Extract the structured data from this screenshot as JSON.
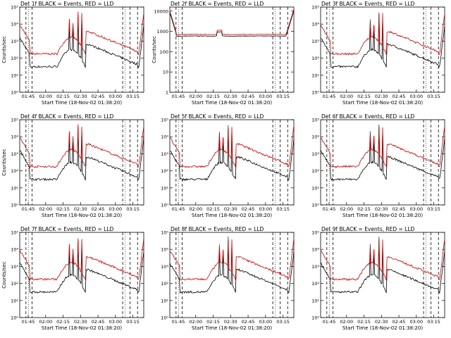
{
  "page": {
    "title_suffix": " BLACK = Events, RED = LLD"
  },
  "colors": {
    "events": "#000000",
    "lld": "#e00000",
    "axes": "#000000"
  },
  "x_label": "Start Time (18-Nov-02 01:38:20)",
  "y_label": "Counts/sec",
  "x_ticks": [
    "01:45",
    "02:00",
    "02:15",
    "02:30",
    "02:45",
    "03:00",
    "03:15"
  ],
  "log_y_ticks": [
    "10⁰",
    "10¹",
    "10²",
    "10³",
    "10⁴",
    "10⁵"
  ],
  "linear_y_ticks": [
    "1",
    "10",
    "100",
    "1000",
    "10000"
  ],
  "chart_data": [
    {
      "type": "line",
      "title": "Det 1f",
      "ylim": [
        1,
        100000
      ],
      "yscale": "log",
      "series": [
        {
          "name": "BLACK = Events"
        },
        {
          "name": "RED = LLD"
        }
      ]
    },
    {
      "type": "line",
      "title": "Det 2f",
      "ylim": [
        1,
        15000
      ],
      "yscale": "log",
      "series": [
        {
          "name": "BLACK = Events"
        },
        {
          "name": "RED = LLD"
        }
      ]
    },
    {
      "type": "line",
      "title": "Det 3f",
      "ylim": [
        1,
        100000
      ],
      "yscale": "log",
      "series": [
        {
          "name": "BLACK = Events"
        },
        {
          "name": "RED = LLD"
        }
      ]
    },
    {
      "type": "line",
      "title": "Det 4f",
      "ylim": [
        1,
        100000
      ],
      "yscale": "log",
      "series": [
        {
          "name": "BLACK = Events"
        },
        {
          "name": "RED = LLD"
        }
      ]
    },
    {
      "type": "line",
      "title": "Det 5f",
      "ylim": [
        1,
        100000
      ],
      "yscale": "log",
      "series": [
        {
          "name": "BLACK = Events"
        },
        {
          "name": "RED = LLD"
        }
      ]
    },
    {
      "type": "line",
      "title": "Det 6f",
      "ylim": [
        1,
        100000
      ],
      "yscale": "log",
      "series": [
        {
          "name": "BLACK = Events"
        },
        {
          "name": "RED = LLD"
        }
      ]
    },
    {
      "type": "line",
      "title": "Det 7f",
      "ylim": [
        1,
        100000
      ],
      "yscale": "log",
      "series": [
        {
          "name": "BLACK = Events"
        },
        {
          "name": "RED = LLD"
        }
      ]
    },
    {
      "type": "line",
      "title": "Det 8f",
      "ylim": [
        1,
        100000
      ],
      "yscale": "log",
      "series": [
        {
          "name": "BLACK = Events"
        },
        {
          "name": "RED = LLD"
        }
      ]
    },
    {
      "type": "line",
      "title": "Det 9f",
      "ylim": [
        1,
        100000
      ],
      "yscale": "log",
      "series": [
        {
          "name": "BLACK = Events"
        },
        {
          "name": "RED = LLD"
        }
      ]
    }
  ]
}
